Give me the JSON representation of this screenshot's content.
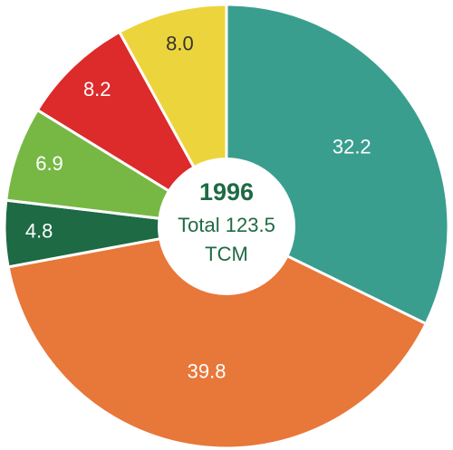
{
  "chart_data": {
    "type": "pie",
    "title": "1996",
    "annotations": [
      "Total 123.5",
      "TCM"
    ],
    "values": [
      32.2,
      39.8,
      4.8,
      6.9,
      8.2,
      8.0
    ],
    "value_labels": [
      "32.2",
      "39.8",
      "4.8",
      "6.9",
      "8.2",
      "8.0"
    ],
    "colors": [
      "#3a9e8f",
      "#e8773a",
      "#1d6a45",
      "#77b845",
      "#dd2a2b",
      "#ecd53c"
    ],
    "label_colors": [
      "#ffffff",
      "#ffffff",
      "#ffffff",
      "#ffffff",
      "#ffffff",
      "#333333"
    ],
    "donut": true
  }
}
